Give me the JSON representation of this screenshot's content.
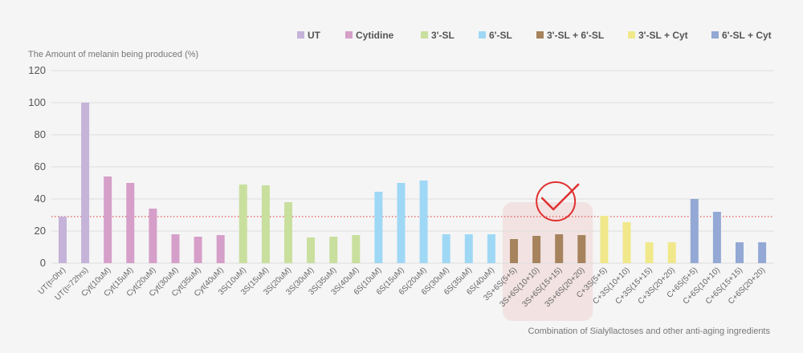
{
  "chart_data": {
    "type": "bar",
    "title": "",
    "ylabel": "The Amount of melanin being produced (%)",
    "xlabel": "",
    "ylim": [
      0,
      120
    ],
    "yticks": [
      0,
      20,
      40,
      60,
      80,
      100,
      120
    ],
    "grid": true,
    "legend_position": "top-right",
    "reference_line": {
      "value": 29,
      "style": "dotted",
      "color": "#e03030"
    },
    "caption": "Combination of Sialyllactoses and other anti-aging ingredients",
    "legend": [
      {
        "name": "UT",
        "color": "#c5b3d9"
      },
      {
        "name": "Cytidine",
        "color": "#d59fc9"
      },
      {
        "name": "3'-SL",
        "color": "#c9df9e"
      },
      {
        "name": "6'-SL",
        "color": "#9fd8f5"
      },
      {
        "name": "3'-SL + 6'-SL",
        "color": "#a6835d"
      },
      {
        "name": "3'-SL + Cyt",
        "color": "#f0e88a"
      },
      {
        "name": "6'-SL + Cyt",
        "color": "#93a8d4"
      }
    ],
    "bars": [
      {
        "label": "UT(t=0hr)",
        "value": 29,
        "group": 0
      },
      {
        "label": "UT(t=72hrs)",
        "value": 100,
        "group": 0
      },
      {
        "label": "Cyt(10uM)",
        "value": 54,
        "group": 1
      },
      {
        "label": "Cyt(15uM)",
        "value": 50,
        "group": 1
      },
      {
        "label": "Cyt(20uM)",
        "value": 34,
        "group": 1
      },
      {
        "label": "Cyt(30uM)",
        "value": 18,
        "group": 1
      },
      {
        "label": "Cyt(35uM)",
        "value": 16.5,
        "group": 1
      },
      {
        "label": "Cyt(40uM)",
        "value": 17.5,
        "group": 1
      },
      {
        "label": "3S(10uM)",
        "value": 49,
        "group": 2
      },
      {
        "label": "3S(15uM)",
        "value": 48.5,
        "group": 2
      },
      {
        "label": "3S(20uM)",
        "value": 38,
        "group": 2
      },
      {
        "label": "3S(30uM)",
        "value": 16,
        "group": 2
      },
      {
        "label": "3S(35uM)",
        "value": 16.5,
        "group": 2
      },
      {
        "label": "3S(40uM)",
        "value": 17.5,
        "group": 2
      },
      {
        "label": "6S(10uM)",
        "value": 44.5,
        "group": 3
      },
      {
        "label": "6S(15uM)",
        "value": 50,
        "group": 3
      },
      {
        "label": "6S(20uM)",
        "value": 51.5,
        "group": 3
      },
      {
        "label": "6S(30uM)",
        "value": 18,
        "group": 3
      },
      {
        "label": "6S(35uM)",
        "value": 18,
        "group": 3
      },
      {
        "label": "6S(40uM)",
        "value": 18,
        "group": 3
      },
      {
        "label": "3S+6S(5+5)",
        "value": 15,
        "group": 4
      },
      {
        "label": "3S+6S(10+10)",
        "value": 17,
        "group": 4
      },
      {
        "label": "3S+6S(15+15)",
        "value": 18,
        "group": 4
      },
      {
        "label": "3S+6S(20+20)",
        "value": 17.5,
        "group": 4
      },
      {
        "label": "C+3S(5+5)",
        "value": 29.5,
        "group": 5
      },
      {
        "label": "C+3S(10+10)",
        "value": 25.5,
        "group": 5
      },
      {
        "label": "C+3S(15+15)",
        "value": 13,
        "group": 5
      },
      {
        "label": "C+3S(20+20)",
        "value": 13,
        "group": 5
      },
      {
        "label": "C+6S(5+5)",
        "value": 40,
        "group": 6
      },
      {
        "label": "C+6S(10+10)",
        "value": 32,
        "group": 6
      },
      {
        "label": "C+6S(15+15)",
        "value": 13,
        "group": 6
      },
      {
        "label": "C+6S(20+20)",
        "value": 13,
        "group": 6
      }
    ],
    "highlight": {
      "from_index": 20,
      "to_index": 23,
      "fill": "#f2e2e2",
      "check_color": "#e03030"
    }
  }
}
